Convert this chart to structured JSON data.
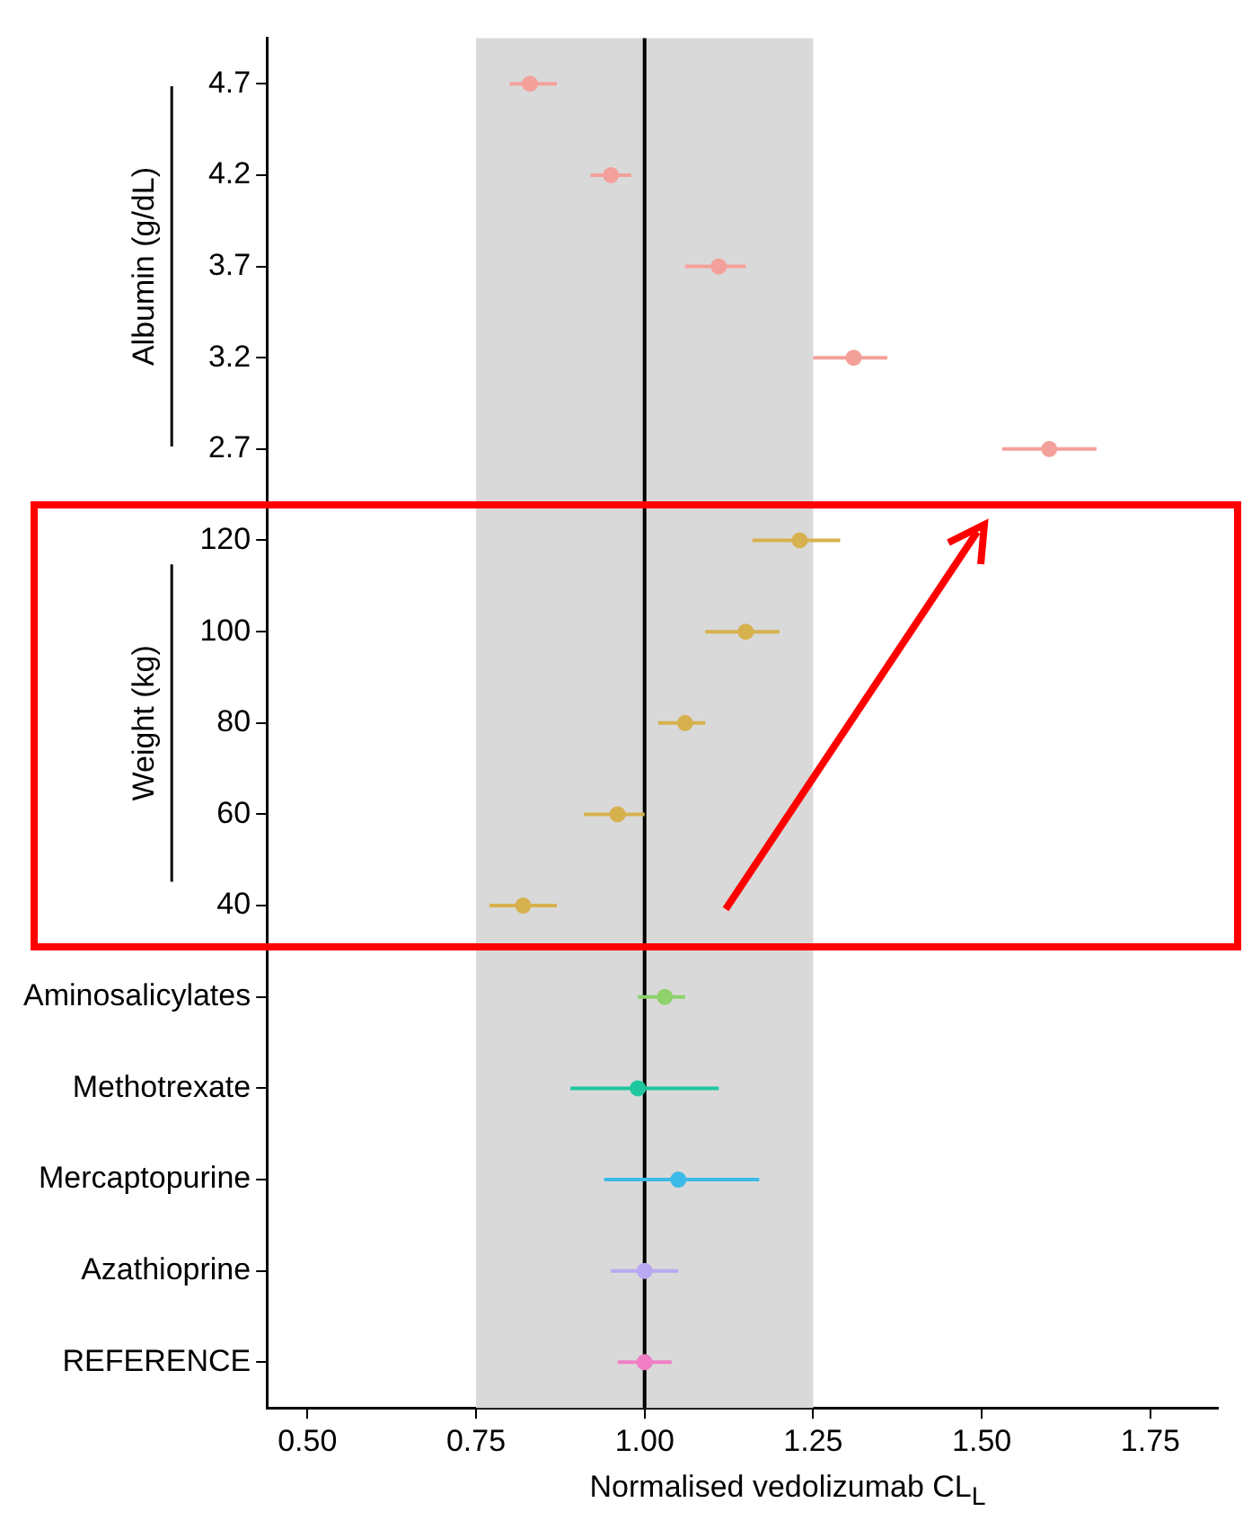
{
  "chart_data": {
    "type": "scatter",
    "orientation": "horizontal",
    "xlabel": "Normalised vedolizumab CL$_{L}$",
    "categories": [
      "4.7",
      "4.2",
      "3.7",
      "3.2",
      "2.7",
      "120",
      "100",
      "80",
      "60",
      "40",
      "Aminosalicylates",
      "Methotrexate",
      "Mercaptopurine",
      "Azathioprine",
      "REFERENCE"
    ],
    "series": [
      {
        "color": "#f4a09a",
        "values": [
          0.83,
          0.95,
          1.11,
          1.31,
          1.6,
          null,
          null,
          null,
          null,
          null,
          null,
          null,
          null,
          null,
          null
        ],
        "errors": [
          [
            0.8,
            0.87
          ],
          [
            0.92,
            0.98
          ],
          [
            1.06,
            1.15
          ],
          [
            1.25,
            1.36
          ],
          [
            1.53,
            1.67
          ],
          null,
          null,
          null,
          null,
          null,
          null,
          null,
          null,
          null,
          null
        ]
      },
      {
        "color": "#d6b14e",
        "values": [
          null,
          null,
          null,
          null,
          null,
          1.23,
          1.15,
          1.06,
          0.96,
          0.82,
          null,
          null,
          null,
          null,
          null
        ],
        "errors": [
          null,
          null,
          null,
          null,
          null,
          [
            1.16,
            1.29
          ],
          [
            1.09,
            1.2
          ],
          [
            1.02,
            1.09
          ],
          [
            0.91,
            1.0
          ],
          [
            0.77,
            0.87
          ],
          null,
          null,
          null,
          null,
          null
        ]
      },
      {
        "color": "#8fd16a",
        "values": [
          null,
          null,
          null,
          null,
          null,
          null,
          null,
          null,
          null,
          null,
          1.03,
          null,
          null,
          null,
          null
        ],
        "errors": [
          null,
          null,
          null,
          null,
          null,
          null,
          null,
          null,
          null,
          null,
          [
            0.99,
            1.06
          ],
          null,
          null,
          null,
          null
        ]
      },
      {
        "color": "#1fc79f",
        "values": [
          null,
          null,
          null,
          null,
          null,
          null,
          null,
          null,
          null,
          null,
          null,
          0.99,
          null,
          null,
          null
        ],
        "errors": [
          null,
          null,
          null,
          null,
          null,
          null,
          null,
          null,
          null,
          null,
          null,
          [
            0.89,
            1.11
          ],
          null,
          null,
          null
        ]
      },
      {
        "color": "#3cbbe8",
        "values": [
          null,
          null,
          null,
          null,
          null,
          null,
          null,
          null,
          null,
          null,
          null,
          null,
          1.05,
          null,
          null
        ],
        "errors": [
          null,
          null,
          null,
          null,
          null,
          null,
          null,
          null,
          null,
          null,
          null,
          null,
          [
            0.94,
            1.17
          ],
          null,
          null
        ]
      },
      {
        "color": "#b9a9f2",
        "values": [
          null,
          null,
          null,
          null,
          null,
          null,
          null,
          null,
          null,
          null,
          null,
          null,
          null,
          1.0,
          null
        ],
        "errors": [
          null,
          null,
          null,
          null,
          null,
          null,
          null,
          null,
          null,
          null,
          null,
          null,
          null,
          [
            0.95,
            1.05
          ],
          null
        ]
      },
      {
        "color": "#f07fc6",
        "values": [
          null,
          null,
          null,
          null,
          null,
          null,
          null,
          null,
          null,
          null,
          null,
          null,
          null,
          null,
          1.0
        ],
        "errors": [
          null,
          null,
          null,
          null,
          null,
          null,
          null,
          null,
          null,
          null,
          null,
          null,
          null,
          null,
          [
            0.96,
            1.04
          ]
        ]
      }
    ],
    "xlim": [
      0.44,
      1.85
    ],
    "xticks": [
      {
        "value": 0.5,
        "label": "0.50"
      },
      {
        "value": 0.75,
        "label": "0.75"
      },
      {
        "value": 1.0,
        "label": "1.00"
      },
      {
        "value": 1.25,
        "label": "1.25"
      },
      {
        "value": 1.5,
        "label": "1.50"
      },
      {
        "value": 1.75,
        "label": "1.75"
      }
    ],
    "bands": [
      {
        "axis": "x",
        "from": 0.75,
        "to": 1.25,
        "color": "#d9d9d9"
      }
    ],
    "ref_lines": [
      {
        "axis": "x",
        "value": 1.0,
        "color": "#000000"
      }
    ],
    "annotations": [
      "Albumin (g/dL)",
      "Weight (kg)"
    ],
    "grid": false,
    "legend": false,
    "marker": "circle"
  }
}
